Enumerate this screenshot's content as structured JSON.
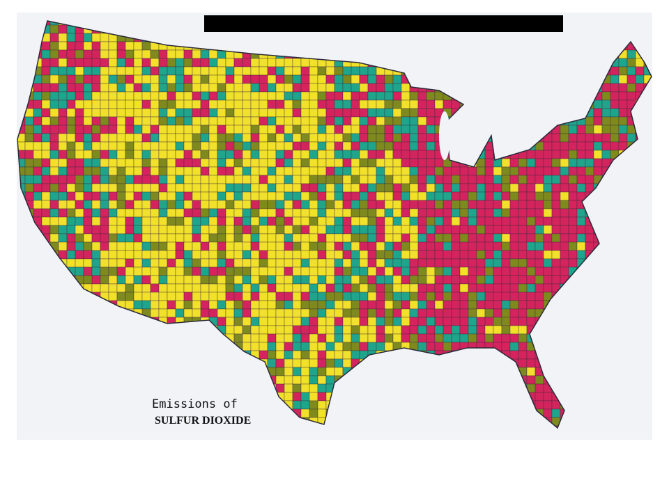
{
  "map": {
    "caption": {
      "line1": "Emissions of",
      "line2": "SULFUR DIOXIDE"
    }
  }
}
